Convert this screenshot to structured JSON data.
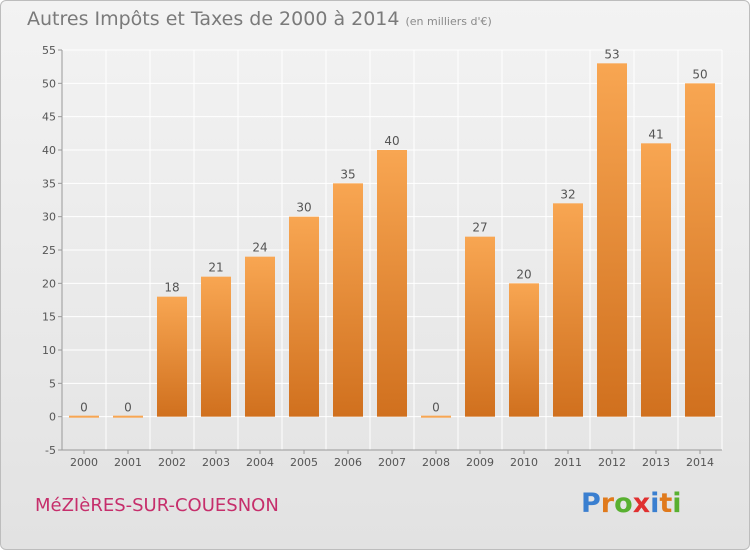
{
  "header": {
    "title": "Autres Impôts et Taxes de 2000 à 2014",
    "subtitle": "(en milliers d'€)"
  },
  "footer": {
    "place": "MéZIèRES-SUR-COUESNON",
    "logo_letters": [
      "P",
      "r",
      "o",
      "x",
      "i",
      "t",
      "i"
    ],
    "logo_colors": [
      "#3a7fd0",
      "#e07a1c",
      "#58b030",
      "#e03030",
      "#3a7fd0",
      "#e07a1c",
      "#58b030"
    ]
  },
  "colors": {
    "bar_light": "#f8a652",
    "bar_dark": "#d0701e",
    "grid": "#ffffff",
    "axis_text": "#555555"
  },
  "chart_data": {
    "type": "bar",
    "title": "Autres Impôts et Taxes de 2000 à 2014",
    "subtitle": "(en milliers d'€)",
    "categories": [
      "2000",
      "2001",
      "2002",
      "2003",
      "2004",
      "2005",
      "2006",
      "2007",
      "2008",
      "2009",
      "2010",
      "2011",
      "2012",
      "2013",
      "2014"
    ],
    "values": [
      0,
      0,
      18,
      21,
      24,
      30,
      35,
      40,
      0,
      27,
      20,
      32,
      53,
      41,
      50
    ],
    "data_labels": [
      "0",
      "0",
      "18",
      "21",
      "24",
      "30",
      "35",
      "40",
      "0",
      "27",
      "20",
      "32",
      "53",
      "41",
      "50"
    ],
    "ylim": [
      -5,
      55
    ],
    "yticks": [
      -5,
      0,
      5,
      10,
      15,
      20,
      25,
      30,
      35,
      40,
      45,
      50,
      55
    ],
    "ytick_labels": [
      "-5",
      "0",
      "5",
      "10",
      "15",
      "20",
      "25",
      "30",
      "35",
      "40",
      "45",
      "50",
      "55"
    ],
    "grid": true
  }
}
